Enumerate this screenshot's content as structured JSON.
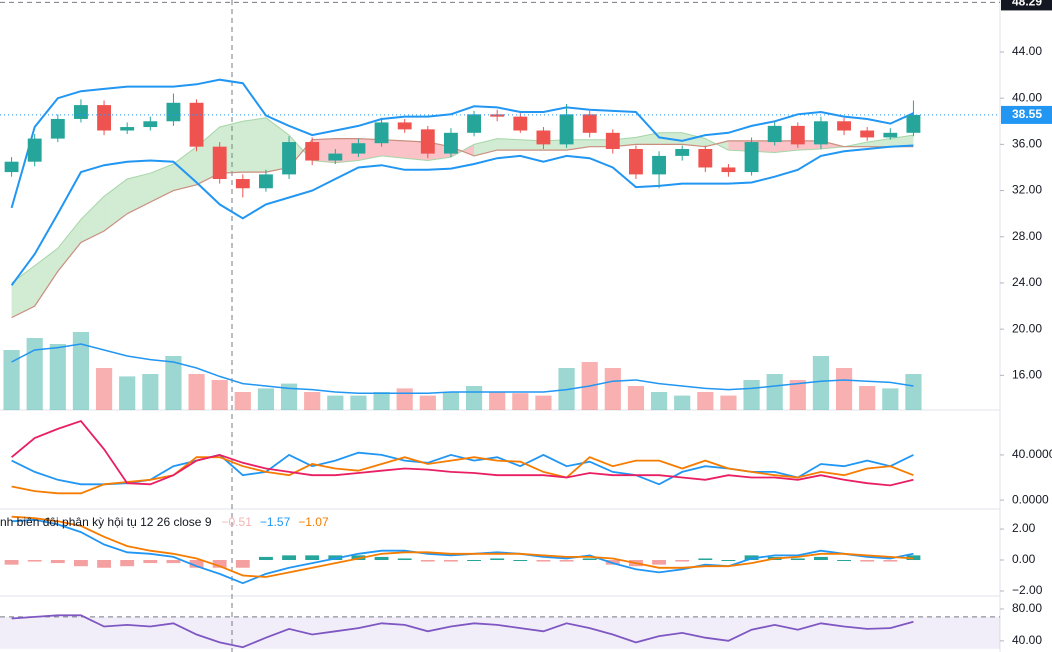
{
  "chart_data": [
    {
      "type": "candlestick",
      "open": [
        33.6,
        34.5,
        36.5,
        38.2,
        39.4,
        37.2,
        37.5,
        38.0,
        39.6,
        35.8,
        33.0,
        32.2,
        33.4,
        36.2,
        34.6,
        35.2,
        36.1,
        37.9,
        37.3,
        35.2,
        37.0,
        38.6,
        38.4,
        37.2,
        36.0,
        38.6,
        37.0,
        35.6,
        33.4,
        35.0,
        35.6,
        34.0,
        33.6,
        36.2,
        37.6,
        36.0,
        38.0,
        37.2,
        36.6,
        37.0
      ],
      "high": [
        34.9,
        36.9,
        38.6,
        39.9,
        39.8,
        37.9,
        38.4,
        40.4,
        39.9,
        36.2,
        33.4,
        33.8,
        36.7,
        36.6,
        35.6,
        36.5,
        38.3,
        38.2,
        37.6,
        37.4,
        38.9,
        39.0,
        38.7,
        37.5,
        39.5,
        38.9,
        37.3,
        35.9,
        35.4,
        35.9,
        35.9,
        34.3,
        36.6,
        38.0,
        37.9,
        38.4,
        38.3,
        37.5,
        37.4,
        39.8
      ],
      "low": [
        33.2,
        34.1,
        36.2,
        37.9,
        36.8,
        36.9,
        37.2,
        37.6,
        35.4,
        32.6,
        31.4,
        31.9,
        33.0,
        34.2,
        34.3,
        34.9,
        35.8,
        37.0,
        34.8,
        34.9,
        36.7,
        38.0,
        37.0,
        35.6,
        35.7,
        36.6,
        35.2,
        33.0,
        32.2,
        34.6,
        33.6,
        33.2,
        33.3,
        35.9,
        35.7,
        35.6,
        36.8,
        36.3,
        36.4,
        36.7
      ],
      "close": [
        34.5,
        36.5,
        38.2,
        39.4,
        37.2,
        37.5,
        38.0,
        39.6,
        35.8,
        33.0,
        32.2,
        33.4,
        36.2,
        34.6,
        35.2,
        36.1,
        37.9,
        37.3,
        35.2,
        37.0,
        38.6,
        38.4,
        37.2,
        36.0,
        38.6,
        37.0,
        35.6,
        33.4,
        35.0,
        35.6,
        34.0,
        33.6,
        36.2,
        37.6,
        36.0,
        38.0,
        37.2,
        36.6,
        37.0,
        38.55
      ],
      "bb_upper": [
        30.5,
        37.5,
        40.0,
        40.6,
        40.8,
        41.0,
        41.0,
        41.0,
        41.2,
        41.6,
        41.3,
        38.5,
        37.6,
        36.8,
        37.2,
        37.6,
        38.2,
        38.4,
        38.4,
        38.6,
        39.3,
        39.2,
        38.8,
        38.8,
        39.2,
        39.0,
        38.9,
        38.8,
        36.6,
        36.3,
        36.8,
        37.0,
        37.6,
        38.0,
        38.6,
        38.8,
        38.4,
        38.2,
        37.8,
        38.7
      ],
      "bb_lower": [
        23.8,
        26.5,
        30.0,
        33.6,
        34.2,
        34.5,
        34.6,
        34.5,
        32.7,
        30.8,
        29.6,
        30.8,
        31.4,
        32.0,
        33.0,
        34.0,
        34.2,
        33.8,
        33.8,
        33.9,
        34.3,
        34.8,
        35.0,
        34.5,
        35.0,
        34.8,
        34.0,
        32.3,
        32.4,
        32.6,
        32.6,
        32.6,
        32.7,
        33.2,
        33.8,
        35.0,
        35.4,
        35.6,
        35.8,
        35.9
      ],
      "span_a": [
        24.0,
        25.5,
        27.0,
        29.5,
        31.5,
        33.0,
        33.5,
        34.3,
        35.8,
        37.5,
        38.0,
        38.3,
        36.8,
        34.6,
        34.4,
        34.6,
        35.0,
        34.8,
        34.6,
        34.9,
        36.0,
        36.5,
        36.4,
        36.3,
        36.4,
        36.4,
        36.4,
        36.6,
        37.0,
        37.0,
        36.5,
        35.5,
        35.4,
        35.3,
        35.5,
        35.6,
        35.8,
        36.2,
        36.5,
        36.8
      ],
      "span_b": [
        21.0,
        22.0,
        25.0,
        27.5,
        28.5,
        30.0,
        31.0,
        32.0,
        32.5,
        33.5,
        33.6,
        33.6,
        34.0,
        36.4,
        36.5,
        36.5,
        36.4,
        36.3,
        36.2,
        35.8,
        35.0,
        35.5,
        35.5,
        35.5,
        35.5,
        35.8,
        35.8,
        36.0,
        36.0,
        36.0,
        35.8,
        36.3,
        36.3,
        36.3,
        36.3,
        36.3,
        35.8,
        35.8,
        35.8,
        35.8
      ],
      "volume": [
        50,
        60,
        55,
        65,
        35,
        28,
        30,
        45,
        30,
        25,
        15,
        18,
        22,
        15,
        12,
        12,
        15,
        18,
        12,
        15,
        20,
        15,
        14,
        12,
        35,
        40,
        35,
        20,
        15,
        12,
        15,
        12,
        25,
        30,
        25,
        45,
        35,
        20,
        18,
        30
      ],
      "volume_ma": [
        40,
        50,
        52,
        55,
        50,
        45,
        42,
        40,
        35,
        28,
        22,
        20,
        18,
        17,
        15,
        14,
        14,
        14,
        14,
        15,
        15,
        15,
        15,
        15,
        17,
        20,
        24,
        25,
        22,
        20,
        18,
        17,
        18,
        20,
        22,
        24,
        25,
        24,
        23,
        20
      ],
      "vlim": [
        0,
        100
      ],
      "up_color": "#26a69a",
      "down_color": "#ef5350",
      "band_color": "#2196f3",
      "ylim": [
        13,
        48.5
      ],
      "yticks": [
        {
          "value": 16,
          "label": "16.00"
        },
        {
          "value": 20,
          "label": "20.00"
        },
        {
          "value": 24,
          "label": "24.00"
        },
        {
          "value": 28,
          "label": "28.00"
        },
        {
          "value": 32,
          "label": "32.00"
        },
        {
          "value": 36,
          "label": "36.00"
        },
        {
          "value": 40,
          "label": "40.00"
        },
        {
          "value": 44,
          "label": "44.00"
        }
      ],
      "axis_top": {
        "value": 48.29,
        "label": "48.29"
      },
      "last_price": {
        "value": 38.55,
        "label": "38.55"
      }
    },
    {
      "type": "line",
      "ylim": [
        -7,
        78
      ],
      "yticks": [
        {
          "value": 0,
          "label": "0.0000"
        },
        {
          "value": 40,
          "label": "40.0000"
        }
      ],
      "series": [
        {
          "color": "#2196f3",
          "values": [
            35,
            25,
            18,
            14,
            14,
            15,
            18,
            30,
            35,
            40,
            22,
            25,
            40,
            30,
            35,
            42,
            40,
            35,
            33,
            40,
            35,
            38,
            30,
            40,
            30,
            34,
            25,
            22,
            14,
            25,
            30,
            28,
            25,
            25,
            20,
            32,
            30,
            35,
            30,
            40
          ]
        },
        {
          "color": "#f57c00",
          "values": [
            12,
            8,
            6,
            6,
            14,
            16,
            18,
            22,
            38,
            38,
            30,
            25,
            22,
            32,
            28,
            26,
            32,
            38,
            32,
            35,
            38,
            35,
            34,
            25,
            20,
            38,
            30,
            35,
            35,
            28,
            35,
            28,
            25,
            22,
            20,
            25,
            22,
            28,
            30,
            22
          ]
        },
        {
          "color": "#e91e63",
          "values": [
            38,
            55,
            63,
            70,
            45,
            15,
            14,
            22,
            35,
            40,
            33,
            28,
            25,
            22,
            22,
            24,
            26,
            28,
            27,
            25,
            24,
            22,
            22,
            22,
            20,
            24,
            22,
            22,
            22,
            20,
            18,
            22,
            20,
            20,
            18,
            22,
            18,
            15,
            13,
            18
          ]
        }
      ]
    },
    {
      "type": "macd",
      "title": "nh biên đôi phân kỳ hội tụ 12 26 close 9",
      "legend_values": [
        {
          "value": -0.51,
          "label": "−0.51",
          "color": "#f5b4b4"
        },
        {
          "value": -1.57,
          "label": "−1.57",
          "color": "#2196f3"
        },
        {
          "value": -1.07,
          "label": "−1.07",
          "color": "#f57c00"
        }
      ],
      "ylim": [
        -2.26,
        3.23
      ],
      "yticks": [
        {
          "value": -2,
          "label": "−2.00"
        },
        {
          "value": 0,
          "label": "0.00"
        },
        {
          "value": 2,
          "label": "2.00"
        }
      ],
      "histogram": [
        -0.3,
        -0.1,
        -0.2,
        -0.4,
        -0.5,
        -0.4,
        -0.2,
        -0.2,
        -0.5,
        -0.5,
        -0.5,
        0.2,
        0.3,
        0.3,
        0.3,
        0.3,
        0.2,
        0.1,
        -0.1,
        -0.1,
        0,
        0.1,
        0,
        -0.1,
        -0.1,
        0.1,
        -0.3,
        -0.4,
        -0.3,
        -0.1,
        0.1,
        0,
        0.3,
        0.2,
        0.1,
        0.2,
        0,
        -0.1,
        -0.1,
        0.3
      ],
      "series": [
        {
          "color": "#2196f3",
          "values": [
            2.5,
            2.6,
            2.3,
            1.8,
            1.0,
            0.5,
            0.4,
            0.2,
            -0.4,
            -0.9,
            -1.5,
            -0.9,
            -0.5,
            -0.2,
            0.1,
            0.4,
            0.6,
            0.6,
            0.4,
            0.3,
            0.4,
            0.5,
            0.4,
            0.2,
            0.1,
            0.3,
            -0.2,
            -0.6,
            -0.8,
            -0.6,
            -0.3,
            -0.4,
            0.1,
            0.3,
            0.3,
            0.6,
            0.4,
            0.2,
            0.1,
            0.4
          ]
        },
        {
          "color": "#f57c00",
          "values": [
            2.8,
            2.7,
            2.5,
            2.2,
            1.5,
            0.9,
            0.6,
            0.4,
            0.1,
            -0.4,
            -1.0,
            -1.1,
            -0.8,
            -0.5,
            -0.2,
            0.1,
            0.4,
            0.5,
            0.5,
            0.4,
            0.4,
            0.4,
            0.4,
            0.3,
            0.2,
            0.2,
            0.1,
            -0.2,
            -0.5,
            -0.5,
            -0.4,
            -0.4,
            -0.2,
            0.1,
            0.2,
            0.4,
            0.4,
            0.3,
            0.2,
            0.1
          ]
        }
      ]
    },
    {
      "type": "rsi",
      "ylim": [
        26,
        95
      ],
      "bands": [
        30,
        70
      ],
      "yticks": [
        {
          "value": 40,
          "label": "40.00"
        },
        {
          "value": 80,
          "label": "80.00"
        }
      ],
      "series": [
        {
          "color": "#7e57c2",
          "values": [
            68,
            70,
            72,
            72,
            58,
            60,
            58,
            62,
            48,
            38,
            32,
            44,
            55,
            48,
            52,
            56,
            62,
            60,
            52,
            58,
            62,
            60,
            56,
            52,
            62,
            56,
            48,
            38,
            46,
            50,
            44,
            40,
            54,
            60,
            54,
            62,
            58,
            55,
            56,
            64
          ]
        }
      ]
    }
  ]
}
